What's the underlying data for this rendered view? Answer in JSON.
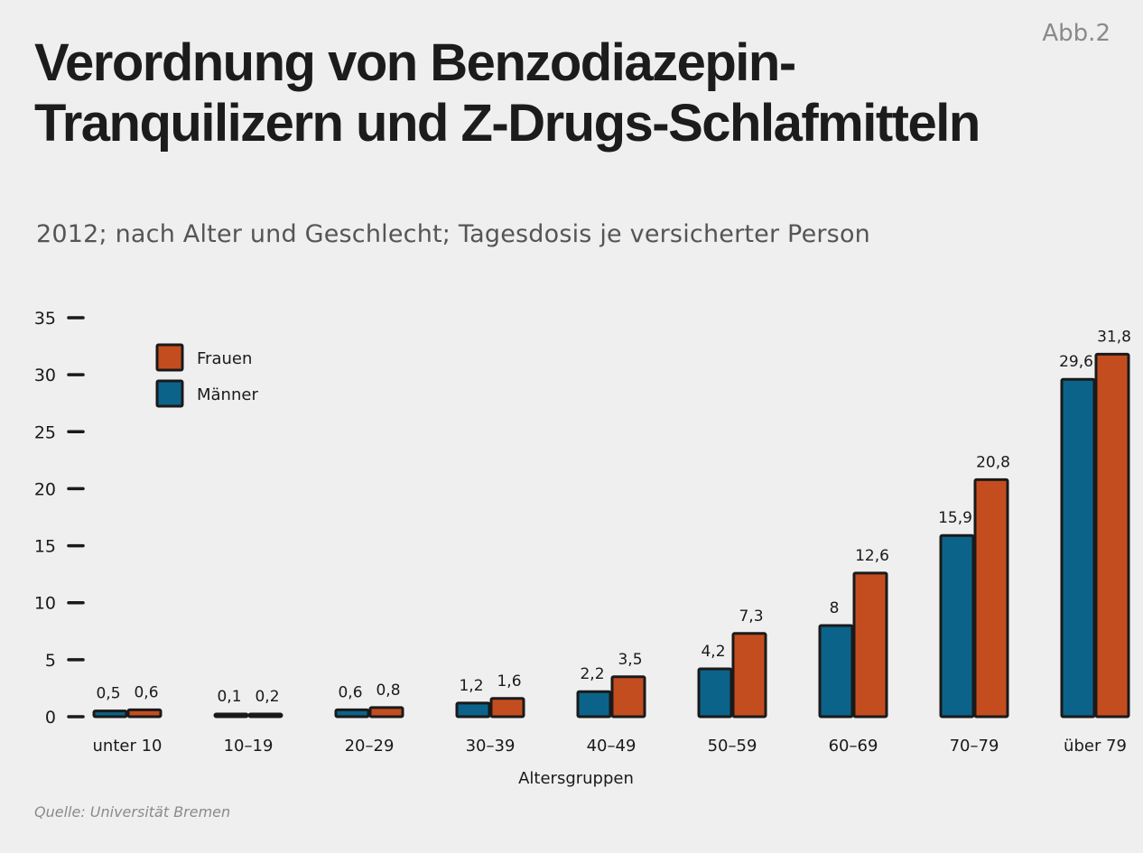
{
  "header": {
    "figure_label": "Abb.2",
    "title": "Verordnung von Benzodiazepin-Tranquilizern und Z-Drugs-Schlafmitteln",
    "subtitle": "2012; nach Alter und Geschlecht; Tagesdosis je versicherter Person",
    "source": "Quelle: Universität Bremen"
  },
  "colors": {
    "frauen": "#c44d20",
    "maenner": "#0b6389",
    "outline": "#1a1a1a"
  },
  "chart_data": {
    "type": "bar",
    "xlabel": "Altersgruppen",
    "ylabel": "",
    "ylim": [
      0,
      35
    ],
    "yticks": [
      0,
      5,
      10,
      15,
      20,
      25,
      30,
      35
    ],
    "grid": false,
    "legend_position": "top-left",
    "categories": [
      "unter 10",
      "10–19",
      "20–29",
      "30–39",
      "40–49",
      "50–59",
      "60–69",
      "70–79",
      "über 79"
    ],
    "series": [
      {
        "name": "Männer",
        "color": "#0b6389",
        "values": [
          0.5,
          0.1,
          0.6,
          1.2,
          2.2,
          4.2,
          8,
          15.9,
          29.6
        ],
        "labels": [
          "0,5",
          "0,1",
          "0,6",
          "1,2",
          "2,2",
          "4,2",
          "8",
          "15,9",
          "29,6"
        ]
      },
      {
        "name": "Frauen",
        "color": "#c44d20",
        "values": [
          0.6,
          0.2,
          0.8,
          1.6,
          3.5,
          7.3,
          12.6,
          20.8,
          31.8
        ],
        "labels": [
          "0,6",
          "0,2",
          "0,8",
          "1,6",
          "3,5",
          "7,3",
          "12,6",
          "20,8",
          "31,8"
        ]
      }
    ],
    "legend": [
      {
        "name": "Frauen",
        "color": "#c44d20"
      },
      {
        "name": "Männer",
        "color": "#0b6389"
      }
    ]
  }
}
